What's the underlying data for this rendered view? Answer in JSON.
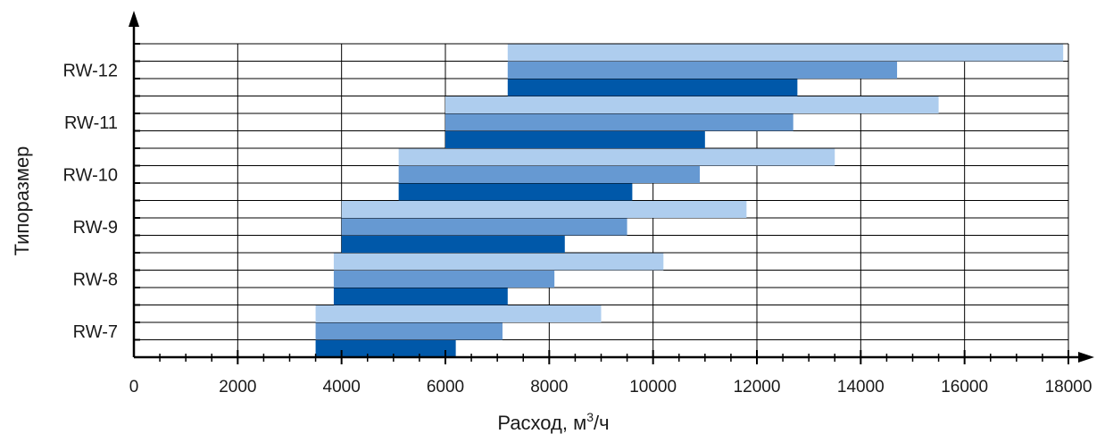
{
  "chart_data": {
    "type": "bar",
    "orientation": "horizontal",
    "floating": true,
    "title": "",
    "xlabel": "Расход, м",
    "xlabel_sup": "3",
    "xlabel_suffix": "/ч",
    "ylabel": "Типоразмер",
    "xlim": [
      0,
      18000
    ],
    "xticks": [
      "0",
      "2000",
      "4000",
      "6000",
      "8000",
      "10000",
      "12000",
      "14000",
      "16000",
      "18000"
    ],
    "grid": true,
    "legend": "none",
    "categories": [
      "RW-12",
      "RW-11",
      "RW-10",
      "RW-9",
      "RW-8",
      "RW-7"
    ],
    "bar_colors": [
      "#aecdee",
      "#6699d2",
      "#0058a9"
    ],
    "bars": [
      {
        "category": "RW-12",
        "start": 7200,
        "ends": [
          17900,
          14700,
          12780
        ]
      },
      {
        "category": "RW-11",
        "start": 6000,
        "ends": [
          15500,
          12700,
          11000
        ]
      },
      {
        "category": "RW-10",
        "start": 5100,
        "ends": [
          13500,
          10900,
          9600
        ]
      },
      {
        "category": "RW-9",
        "start": 4000,
        "ends": [
          11800,
          9500,
          8300
        ]
      },
      {
        "category": "RW-8",
        "start": 3850,
        "ends": [
          10200,
          8100,
          7200
        ]
      },
      {
        "category": "RW-7",
        "start": 3500,
        "ends": [
          9000,
          7100,
          6200
        ]
      }
    ]
  }
}
